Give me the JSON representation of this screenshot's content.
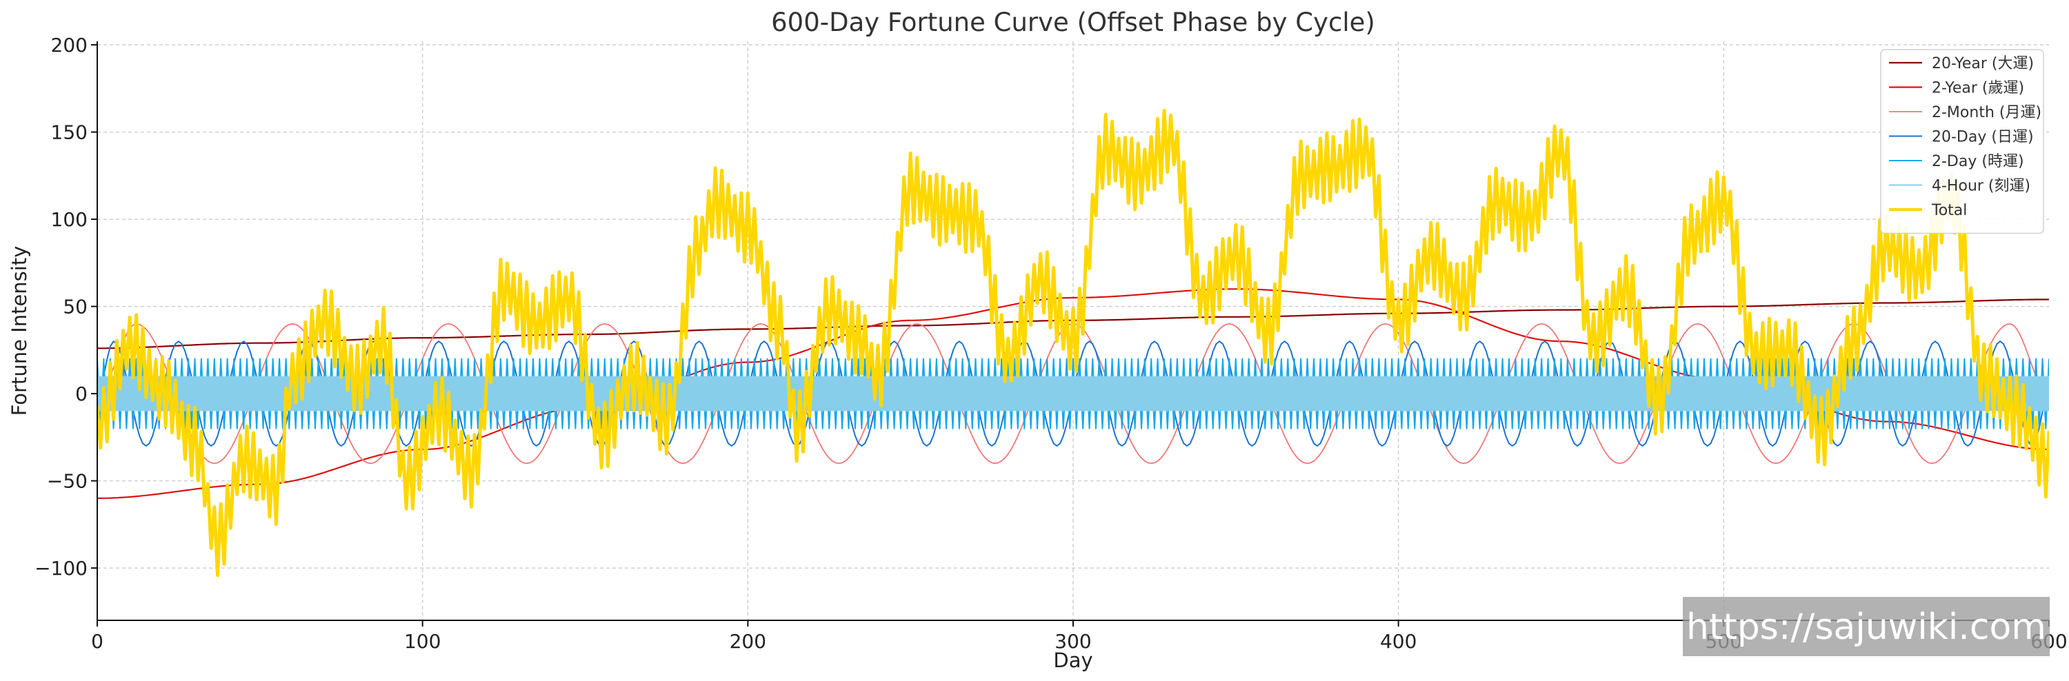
{
  "chart_data": {
    "type": "line",
    "title": "600-Day Fortune Curve (Offset Phase by Cycle)",
    "xlabel": "Day",
    "ylabel": "Fortune Intensity",
    "xlim": [
      0,
      600
    ],
    "ylim": [
      -130,
      202
    ],
    "xticks": [
      0,
      100,
      200,
      300,
      400,
      500,
      600
    ],
    "yticks": [
      -100,
      -50,
      0,
      50,
      100,
      150,
      200
    ],
    "xtick_labels": [
      "0",
      "100",
      "200",
      "300",
      "400",
      "500",
      "600"
    ],
    "ytick_labels": [
      "−100",
      "−50",
      "0",
      "50",
      "100",
      "150",
      "200"
    ],
    "grid": true,
    "zero_reference_line": "dashed gray at y = 0",
    "legend_position": "top-right",
    "series": [
      {
        "name": "20-Year (大運)",
        "color": "#8b0000",
        "width": 2.2,
        "x": [
          0,
          50,
          100,
          150,
          200,
          250,
          300,
          350,
          400,
          450,
          500,
          550,
          600
        ],
        "y": [
          26,
          29,
          32,
          34,
          37,
          39,
          42,
          44,
          46,
          48,
          50,
          52,
          54
        ]
      },
      {
        "name": "2-Year (歲運)",
        "color": "#e01010",
        "width": 2.2,
        "x": [
          0,
          50,
          100,
          150,
          200,
          250,
          300,
          350,
          400,
          450,
          500,
          550,
          600
        ],
        "y": [
          -60,
          -52,
          -32,
          -8,
          18,
          42,
          55,
          60,
          54,
          30,
          8,
          -16,
          -32
        ]
      },
      {
        "name": "2-Month (月運)",
        "color": "#f07878",
        "width": 1.8,
        "x": [
          0,
          12,
          36,
          60,
          84,
          108,
          132,
          156,
          180,
          204,
          228,
          252,
          276,
          300,
          324,
          348,
          372,
          396,
          420,
          444,
          468,
          492,
          516,
          540,
          564,
          588,
          600
        ],
        "y": [
          0,
          40,
          -40,
          40,
          -40,
          40,
          -40,
          40,
          -40,
          40,
          -40,
          40,
          -40,
          40,
          -40,
          40,
          -40,
          40,
          -40,
          40,
          -40,
          40,
          -40,
          40,
          -40,
          40,
          0
        ]
      },
      {
        "name": "20-Day (日運)",
        "color": "#1c72d2",
        "width": 2.0,
        "x": [
          0,
          5,
          15,
          25,
          35,
          45,
          55,
          65,
          75,
          85,
          95,
          105,
          115,
          125,
          135,
          145,
          155,
          165,
          175,
          185,
          195,
          205,
          215,
          225,
          235,
          245,
          255,
          265,
          275,
          285,
          295,
          305,
          315,
          325,
          335,
          345,
          355,
          365,
          375,
          385,
          395,
          405,
          415,
          425,
          435,
          445,
          455,
          465,
          475,
          485,
          495,
          505,
          515,
          525,
          535,
          545,
          555,
          565,
          575,
          585,
          595,
          600
        ],
        "y": [
          0,
          30,
          -30,
          30,
          -30,
          30,
          -30,
          30,
          -30,
          30,
          -30,
          30,
          -30,
          30,
          -30,
          30,
          -30,
          30,
          -30,
          30,
          -30,
          30,
          -30,
          30,
          -30,
          30,
          -30,
          30,
          -30,
          30,
          -30,
          30,
          -30,
          30,
          -30,
          30,
          -30,
          30,
          -30,
          30,
          -30,
          30,
          -30,
          30,
          -30,
          30,
          -30,
          30,
          -30,
          30,
          -30,
          30,
          -30,
          30,
          -30,
          30,
          -30,
          30,
          -30,
          30,
          -30,
          0
        ]
      },
      {
        "name": "2-Day (時運)",
        "color": "#14a8ee",
        "width": 2.0,
        "band_min": -20,
        "band_max": 20,
        "period_days": 2
      },
      {
        "name": "4-Hour (刻運)",
        "color": "#87ceeb",
        "width": 2.0,
        "band_min": -10,
        "band_max": 10,
        "period_days": 0.167
      },
      {
        "name": "Total",
        "color": "#ffd700",
        "width": 5,
        "x": [
          0,
          10,
          20,
          30,
          37,
          45,
          55,
          60,
          70,
          80,
          88,
          95,
          105,
          115,
          125,
          135,
          145,
          155,
          165,
          175,
          185,
          190,
          200,
          210,
          215,
          225,
          235,
          240,
          250,
          260,
          270,
          280,
          290,
          300,
          310,
          320,
          330,
          340,
          350,
          360,
          370,
          380,
          390,
          400,
          410,
          420,
          430,
          440,
          450,
          460,
          470,
          480,
          490,
          500,
          510,
          520,
          530,
          540,
          550,
          560,
          570,
          580,
          590,
          600
        ],
        "y": [
          -18,
          28,
          2,
          -28,
          -85,
          -38,
          -55,
          10,
          42,
          8,
          30,
          -50,
          -10,
          -45,
          60,
          40,
          55,
          -25,
          10,
          -15,
          85,
          110,
          95,
          38,
          -20,
          48,
          30,
          10,
          118,
          105,
          100,
          20,
          65,
          30,
          140,
          125,
          145,
          55,
          80,
          35,
          125,
          130,
          140,
          40,
          80,
          55,
          110,
          100,
          140,
          30,
          60,
          -5,
          90,
          110,
          22,
          25,
          -22,
          30,
          85,
          70,
          112,
          10,
          -10,
          -40
        ],
        "ripple_amp": 20,
        "ripple_period": 2
      }
    ]
  },
  "watermark": "https://sajuwiki.com"
}
